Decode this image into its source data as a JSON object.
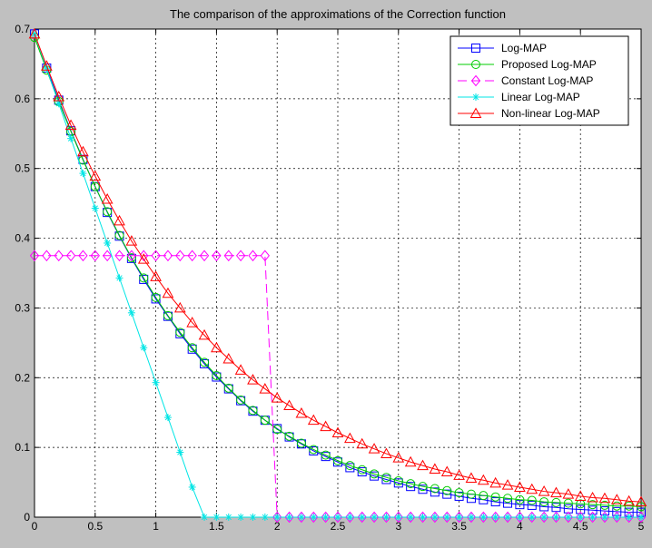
{
  "chart_data": {
    "type": "line",
    "title": "The comparison of the approximations of the Correction function",
    "xlabel": "",
    "ylabel": "",
    "xlim": [
      0,
      5
    ],
    "ylim": [
      0,
      0.7
    ],
    "xticks": [
      "0",
      "0.5",
      "1",
      "1.5",
      "2",
      "2.5",
      "3",
      "3.5",
      "4",
      "4.5",
      "5"
    ],
    "yticks": [
      "0",
      "0.1",
      "0.2",
      "0.3",
      "0.4",
      "0.5",
      "0.6",
      "0.7"
    ],
    "grid": true,
    "legend_position": "top-right",
    "x": [
      0,
      0.1,
      0.2,
      0.3,
      0.4,
      0.5,
      0.6,
      0.7,
      0.8,
      0.9,
      1,
      1.1,
      1.2,
      1.3,
      1.4,
      1.5,
      1.6,
      1.7,
      1.8,
      1.9,
      2,
      2.1,
      2.2,
      2.3,
      2.4,
      2.5,
      2.6,
      2.7,
      2.8,
      2.9,
      3,
      3.1,
      3.2,
      3.3,
      3.4,
      3.5,
      3.6,
      3.7,
      3.8,
      3.9,
      4,
      4.1,
      4.2,
      4.3,
      4.4,
      4.5,
      4.6,
      4.7,
      4.8,
      4.9,
      5
    ],
    "series": [
      {
        "name": "Log-MAP",
        "color": "#0000ff",
        "marker": "square",
        "dash": "",
        "values": [
          0.693,
          0.644,
          0.598,
          0.554,
          0.513,
          0.474,
          0.437,
          0.403,
          0.371,
          0.341,
          0.313,
          0.288,
          0.263,
          0.241,
          0.22,
          0.201,
          0.184,
          0.167,
          0.152,
          0.139,
          0.127,
          0.115,
          0.105,
          0.095,
          0.087,
          0.079,
          0.071,
          0.065,
          0.059,
          0.054,
          0.049,
          0.044,
          0.04,
          0.036,
          0.033,
          0.03,
          0.027,
          0.025,
          0.022,
          0.02,
          0.018,
          0.017,
          0.015,
          0.014,
          0.012,
          0.011,
          0.01,
          0.009,
          0.008,
          0.007,
          0.007
        ]
      },
      {
        "name": "Proposed Log-MAP",
        "color": "#00cc00",
        "marker": "circle",
        "dash": "",
        "values": [
          0.688,
          0.641,
          0.596,
          0.553,
          0.512,
          0.474,
          0.438,
          0.404,
          0.372,
          0.343,
          0.315,
          0.289,
          0.265,
          0.243,
          0.222,
          0.203,
          0.185,
          0.168,
          0.153,
          0.139,
          0.126,
          0.116,
          0.106,
          0.097,
          0.089,
          0.081,
          0.074,
          0.068,
          0.062,
          0.057,
          0.052,
          0.048,
          0.044,
          0.041,
          0.038,
          0.035,
          0.033,
          0.031,
          0.029,
          0.027,
          0.025,
          0.024,
          0.022,
          0.021,
          0.02,
          0.019,
          0.018,
          0.017,
          0.016,
          0.016,
          0.015
        ]
      },
      {
        "name": "Constant Log-MAP",
        "color": "#ff00ff",
        "marker": "diamond",
        "dash": "10,5",
        "values": [
          0.375,
          0.375,
          0.375,
          0.375,
          0.375,
          0.375,
          0.375,
          0.375,
          0.375,
          0.375,
          0.375,
          0.375,
          0.375,
          0.375,
          0.375,
          0.375,
          0.375,
          0.375,
          0.375,
          0.375,
          0,
          0,
          0,
          0,
          0,
          0,
          0,
          0,
          0,
          0,
          0,
          0,
          0,
          0,
          0,
          0,
          0,
          0,
          0,
          0,
          0,
          0,
          0,
          0,
          0,
          0,
          0,
          0,
          0,
          0,
          0
        ]
      },
      {
        "name": "Linear Log-MAP",
        "color": "#00e5e5",
        "marker": "star",
        "dash": "",
        "values": [
          0.693,
          0.643,
          0.593,
          0.543,
          0.493,
          0.443,
          0.393,
          0.343,
          0.293,
          0.243,
          0.193,
          0.143,
          0.093,
          0.043,
          0,
          0,
          0,
          0,
          0,
          0,
          0,
          0,
          0,
          0,
          0,
          0,
          0,
          0,
          0,
          0,
          0,
          0,
          0,
          0,
          0,
          0,
          0,
          0,
          0,
          0,
          0,
          0,
          0,
          0,
          0,
          0,
          0,
          0,
          0,
          0,
          0
        ]
      },
      {
        "name": "Non-linear Log-MAP",
        "color": "#ff0000",
        "marker": "triangle",
        "dash": "",
        "values": [
          0.693,
          0.647,
          0.603,
          0.562,
          0.524,
          0.489,
          0.456,
          0.425,
          0.396,
          0.37,
          0.345,
          0.321,
          0.3,
          0.279,
          0.261,
          0.243,
          0.227,
          0.211,
          0.197,
          0.184,
          0.171,
          0.16,
          0.149,
          0.139,
          0.13,
          0.121,
          0.113,
          0.105,
          0.098,
          0.091,
          0.085,
          0.079,
          0.074,
          0.069,
          0.065,
          0.06,
          0.056,
          0.053,
          0.049,
          0.046,
          0.043,
          0.04,
          0.037,
          0.035,
          0.033,
          0.03,
          0.028,
          0.027,
          0.025,
          0.023,
          0.022
        ]
      }
    ]
  }
}
